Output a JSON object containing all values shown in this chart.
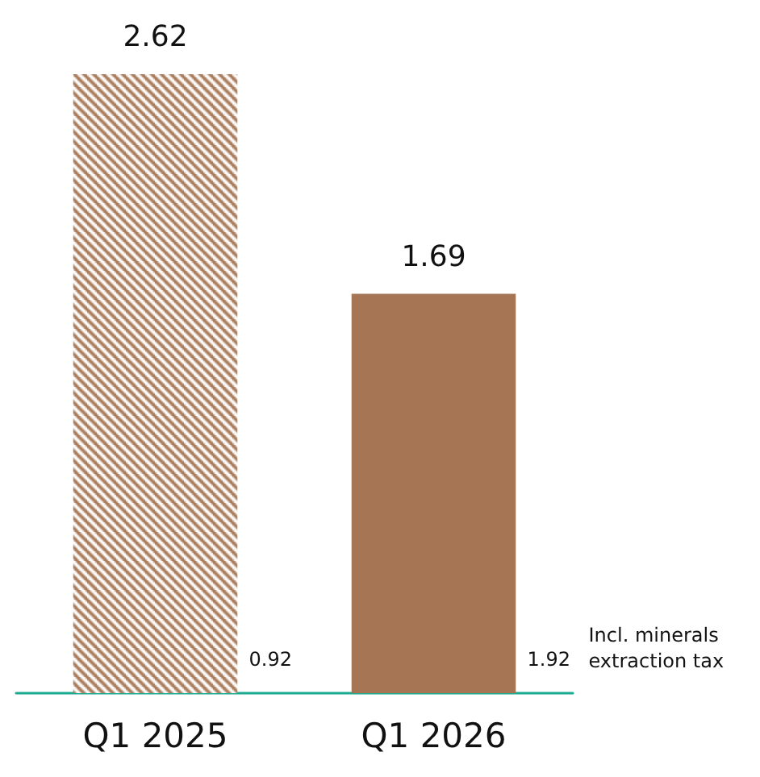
{
  "chart_data": {
    "type": "bar",
    "categories": [
      "Q1 2025",
      "Q1 2026"
    ],
    "values": [
      2.62,
      1.69
    ],
    "colors": [
      "#a67654",
      "#a67654"
    ],
    "data_labels": true,
    "annotations": [
      "0.92",
      "1.92",
      "Incl. minerals\nextraction tax"
    ]
  }
}
